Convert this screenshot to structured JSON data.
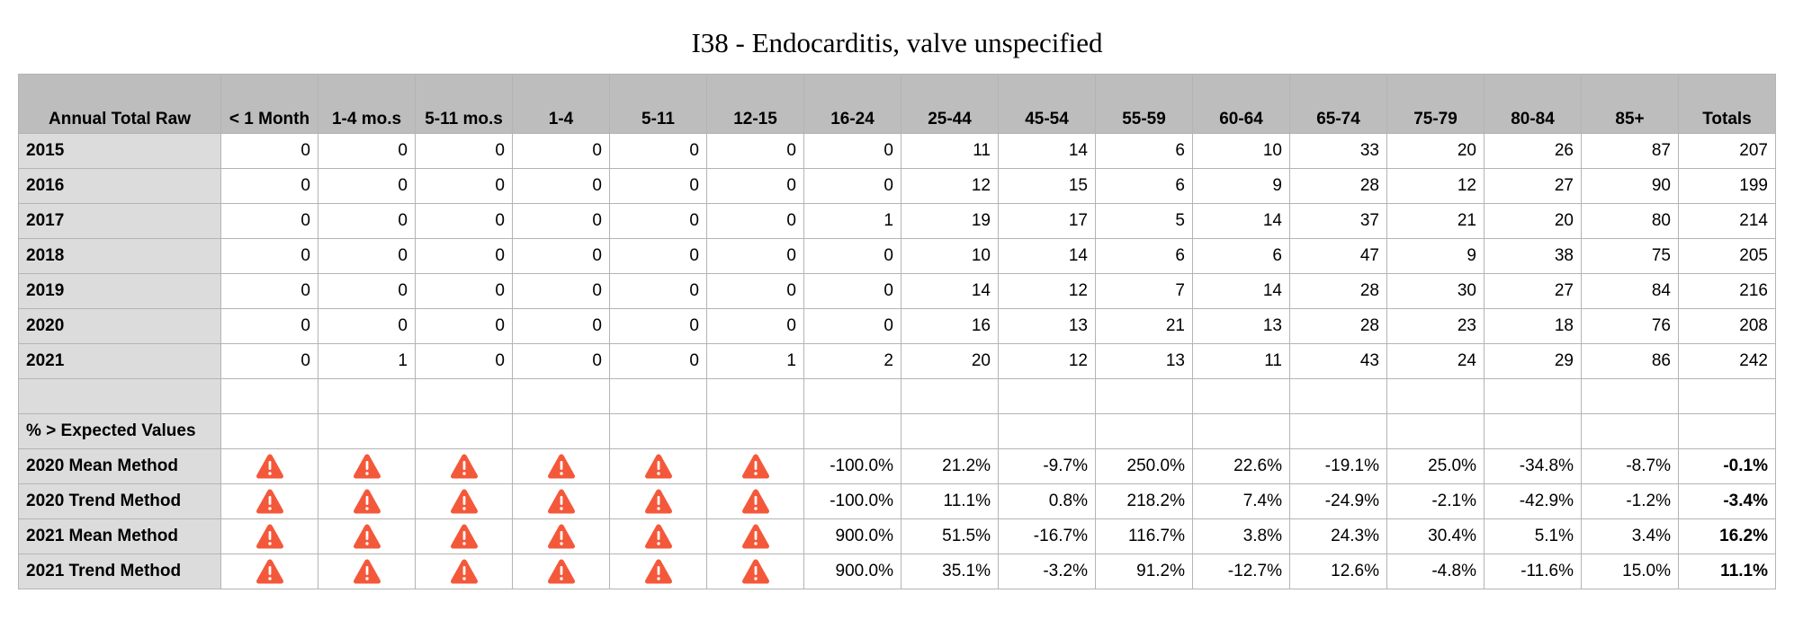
{
  "title": "I38 - Endocarditis, valve unspecified",
  "table": {
    "corner_label": "Annual Total Raw",
    "columns": [
      "< 1 Month",
      "1-4 mo.s",
      "5-11 mo.s",
      "1-4",
      "5-11",
      "12-15",
      "16-24",
      "25-44",
      "45-54",
      "55-59",
      "60-64",
      "65-74",
      "75-79",
      "80-84",
      "85+",
      "Totals"
    ],
    "raw_rows": [
      {
        "label": "2015",
        "values": [
          "0",
          "0",
          "0",
          "0",
          "0",
          "0",
          "0",
          "11",
          "14",
          "6",
          "10",
          "33",
          "20",
          "26",
          "87",
          "207"
        ]
      },
      {
        "label": "2016",
        "values": [
          "0",
          "0",
          "0",
          "0",
          "0",
          "0",
          "0",
          "12",
          "15",
          "6",
          "9",
          "28",
          "12",
          "27",
          "90",
          "199"
        ]
      },
      {
        "label": "2017",
        "values": [
          "0",
          "0",
          "0",
          "0",
          "0",
          "0",
          "1",
          "19",
          "17",
          "5",
          "14",
          "37",
          "21",
          "20",
          "80",
          "214"
        ]
      },
      {
        "label": "2018",
        "values": [
          "0",
          "0",
          "0",
          "0",
          "0",
          "0",
          "0",
          "10",
          "14",
          "6",
          "6",
          "47",
          "9",
          "38",
          "75",
          "205"
        ]
      },
      {
        "label": "2019",
        "values": [
          "0",
          "0",
          "0",
          "0",
          "0",
          "0",
          "0",
          "14",
          "12",
          "7",
          "14",
          "28",
          "30",
          "27",
          "84",
          "216"
        ]
      },
      {
        "label": "2020",
        "values": [
          "0",
          "0",
          "0",
          "0",
          "0",
          "0",
          "0",
          "16",
          "13",
          "21",
          "13",
          "28",
          "23",
          "18",
          "76",
          "208"
        ]
      },
      {
        "label": "2021",
        "values": [
          "0",
          "1",
          "0",
          "0",
          "0",
          "1",
          "2",
          "20",
          "12",
          "13",
          "11",
          "43",
          "24",
          "29",
          "86",
          "242"
        ]
      }
    ],
    "section_label": "% > Expected Values",
    "pct_rows": [
      {
        "label": "2020 Mean Method",
        "values": [
          "-100.0%",
          "21.2%",
          "-9.7%",
          "250.0%",
          "22.6%",
          "-19.1%",
          "25.0%",
          "-34.8%",
          "-8.7%",
          "-0.1%"
        ]
      },
      {
        "label": "2020 Trend Method",
        "values": [
          "-100.0%",
          "11.1%",
          "0.8%",
          "218.2%",
          "7.4%",
          "-24.9%",
          "-2.1%",
          "-42.9%",
          "-1.2%",
          "-3.4%"
        ]
      },
      {
        "label": "2021 Mean Method",
        "values": [
          "900.0%",
          "51.5%",
          "-16.7%",
          "116.7%",
          "3.8%",
          "24.3%",
          "30.4%",
          "5.1%",
          "3.4%",
          "16.2%"
        ]
      },
      {
        "label": "2021 Trend Method",
        "values": [
          "900.0%",
          "35.1%",
          "-3.2%",
          "91.2%",
          "-12.7%",
          "12.6%",
          "-4.8%",
          "-11.6%",
          "15.0%",
          "11.1%"
        ]
      }
    ],
    "warning_icon": "warning-triangle-icon",
    "warning_color": "#f4583a",
    "header_bg": "#bdbdbd",
    "rowhead_bg": "#dcdcdc"
  }
}
